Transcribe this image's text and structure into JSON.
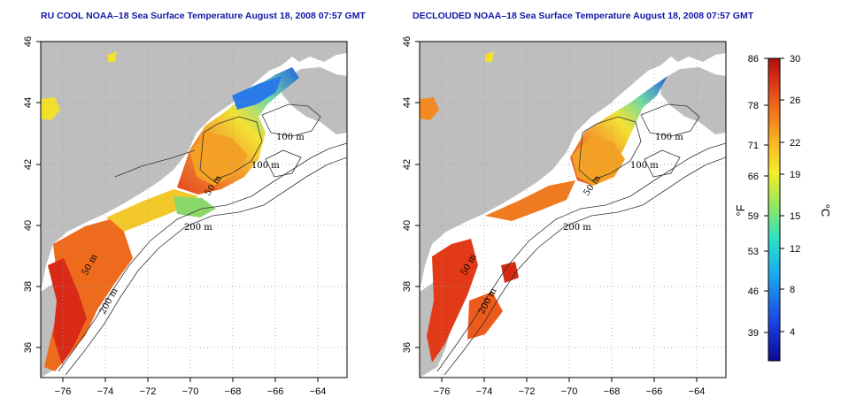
{
  "left_map": {
    "title": "RU COOL NOAA–18 Sea Surface Temperature August 18, 2008 07:57 GMT",
    "contours": [
      "100 m",
      "100 m",
      "50 m",
      "200 m",
      "50 m",
      "200 m"
    ]
  },
  "right_map": {
    "title": "DECLOUDED NOAA–18 Sea Surface Temperature August 18, 2008 07:57 GMT",
    "contours": [
      "100 m",
      "100 m",
      "50 m",
      "200 m",
      "50 m",
      "200 m"
    ]
  },
  "lat_ticks": [
    "46",
    "44",
    "42",
    "40",
    "38",
    "36"
  ],
  "lon_ticks": [
    "−76",
    "−74",
    "−72",
    "−70",
    "−68",
    "−66",
    "−64"
  ],
  "colorbar": {
    "fahrenheit_ticks": [
      "86",
      "78",
      "71",
      "66",
      "59",
      "53",
      "46",
      "39"
    ],
    "celsius_ticks": [
      "30",
      "26",
      "22",
      "19",
      "15",
      "12",
      "8",
      "4"
    ],
    "unit_f": "°F",
    "unit_c": "°C",
    "range_c": [
      0,
      30
    ]
  },
  "colors": {
    "land": "#bebebe",
    "title": "#1515a8",
    "warm": "#e8441c",
    "cool": "#1b5fd8"
  }
}
